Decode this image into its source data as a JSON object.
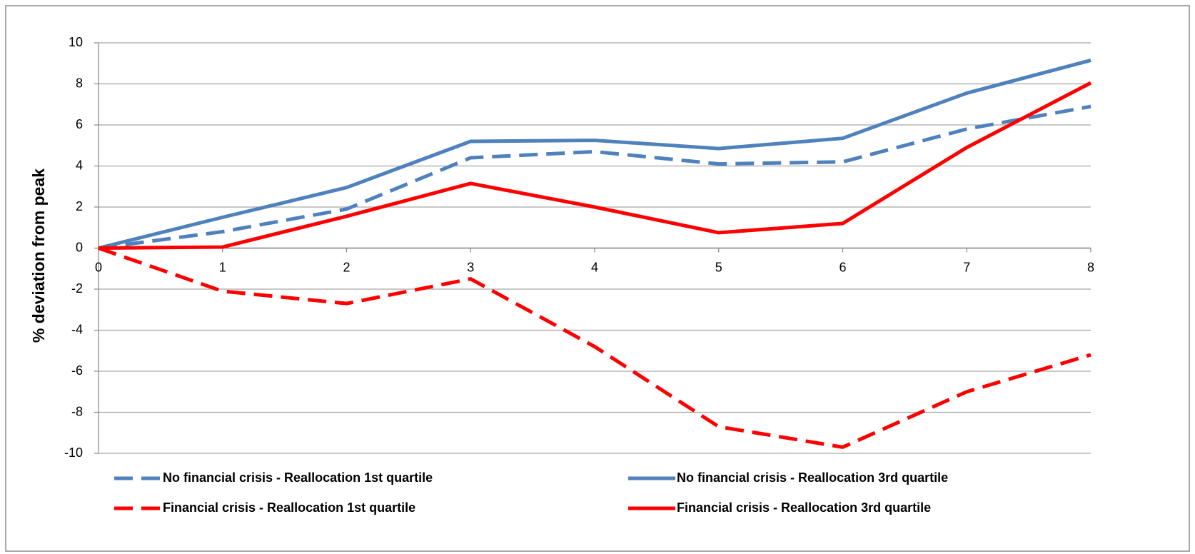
{
  "chart_data": {
    "type": "line",
    "y_label": "% deviation from peak",
    "x": [
      0,
      1,
      2,
      3,
      4,
      5,
      6,
      7,
      8
    ],
    "xlim": [
      0,
      8
    ],
    "xticks": [
      0,
      1,
      2,
      3,
      4,
      5,
      6,
      7,
      8
    ],
    "ylim": [
      -10,
      10
    ],
    "yticks": [
      -10,
      -8,
      -6,
      -4,
      -2,
      0,
      2,
      4,
      6,
      8,
      10
    ],
    "grid": true,
    "legend": "bottom",
    "series": [
      {
        "name": "No financial crisis - Reallocation 1st quartile",
        "color": "#4f81bd",
        "dashed": true,
        "values": [
          0,
          0.8,
          1.9,
          4.4,
          4.7,
          4.1,
          4.2,
          5.8,
          6.9
        ]
      },
      {
        "name": "No financial crisis - Reallocation 3rd quartile",
        "color": "#4f81bd",
        "dashed": false,
        "values": [
          0,
          1.5,
          2.95,
          5.2,
          5.25,
          4.85,
          5.35,
          7.55,
          9.15
        ]
      },
      {
        "name": "Financial crisis - Reallocation 1st quartile",
        "color": "#ff0000",
        "dashed": true,
        "values": [
          0,
          -2.1,
          -2.7,
          -1.5,
          -4.8,
          -8.7,
          -9.7,
          -7.0,
          -5.2
        ]
      },
      {
        "name": "Financial crisis - Reallocation 3rd quartile",
        "color": "#ff0000",
        "dashed": false,
        "values": [
          0,
          0.05,
          1.55,
          3.15,
          2.0,
          0.75,
          1.2,
          4.9,
          8.05
        ]
      }
    ]
  }
}
